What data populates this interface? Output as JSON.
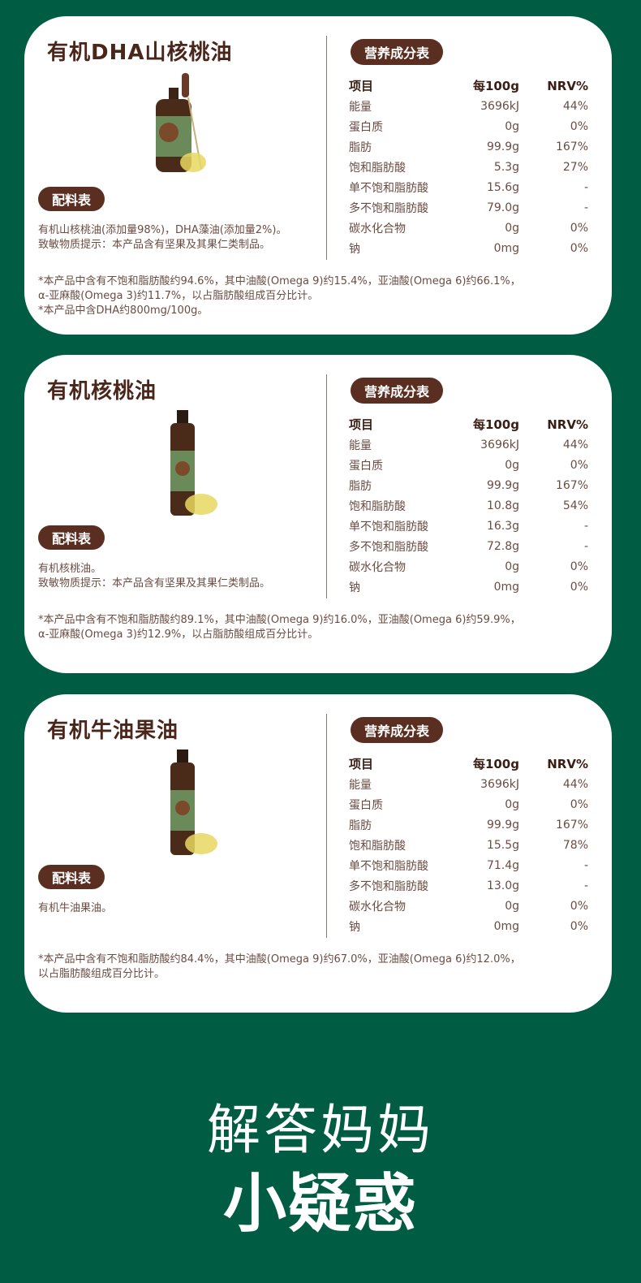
{
  "colors": {
    "background": "#005c43",
    "brown": "#5a2f22"
  },
  "cards": [
    {
      "title": "有机DHA山核桃油",
      "ingredients_label": "配料表",
      "nutrition_label": "营养成分表",
      "ingredients": [
        "有机山核桃油(添加量98%)，DHA藻油(添加量2%)。",
        "致敏物质提示：本产品含有坚果及其果仁类制品。"
      ],
      "header": [
        "项目",
        "每100g",
        "NRV%"
      ],
      "rows": [
        [
          "能量",
          "3696kJ",
          "44%"
        ],
        [
          "蛋白质",
          "0g",
          "0%"
        ],
        [
          "脂肪",
          "99.9g",
          "167%"
        ],
        [
          "饱和脂肪酸",
          "5.3g",
          "27%"
        ],
        [
          "单不饱和脂肪酸",
          "15.6g",
          "-"
        ],
        [
          "多不饱和脂肪酸",
          "79.0g",
          "-"
        ],
        [
          "碳水化合物",
          "0g",
          "0%"
        ],
        [
          "钠",
          "0mg",
          "0%"
        ]
      ],
      "footnotes": [
        "*本产品中含有不饱和脂肪酸约94.6%，其中油酸(Omega 9)约15.4%，亚油酸(Omega 6)约66.1%，",
        "α-亚麻酸(Omega 3)约11.7%，以占脂肪酸组成百分比计。",
        "*本产品中含DHA约800mg/100g。"
      ],
      "bottle": "dropper"
    },
    {
      "title": "有机核桃油",
      "ingredients_label": "配料表",
      "nutrition_label": "营养成分表",
      "ingredients": [
        "有机核桃油。",
        "致敏物质提示：本产品含有坚果及其果仁类制品。"
      ],
      "header": [
        "项目",
        "每100g",
        "NRV%"
      ],
      "rows": [
        [
          "能量",
          "3696kJ",
          "44%"
        ],
        [
          "蛋白质",
          "0g",
          "0%"
        ],
        [
          "脂肪",
          "99.9g",
          "167%"
        ],
        [
          "饱和脂肪酸",
          "10.8g",
          "54%"
        ],
        [
          "单不饱和脂肪酸",
          "16.3g",
          "-"
        ],
        [
          "多不饱和脂肪酸",
          "72.8g",
          "-"
        ],
        [
          "碳水化合物",
          "0g",
          "0%"
        ],
        [
          "钠",
          "0mg",
          "0%"
        ]
      ],
      "footnotes": [
        "*本产品中含有不饱和脂肪酸约89.1%，其中油酸(Omega 9)约16.0%，亚油酸(Omega 6)约59.9%，",
        "α-亚麻酸(Omega 3)约12.9%，以占脂肪酸组成百分比计。"
      ],
      "bottle": "slim"
    },
    {
      "title": "有机牛油果油",
      "ingredients_label": "配料表",
      "nutrition_label": "营养成分表",
      "ingredients": [
        "有机牛油果油。"
      ],
      "header": [
        "项目",
        "每100g",
        "NRV%"
      ],
      "rows": [
        [
          "能量",
          "3696kJ",
          "44%"
        ],
        [
          "蛋白质",
          "0g",
          "0%"
        ],
        [
          "脂肪",
          "99.9g",
          "167%"
        ],
        [
          "饱和脂肪酸",
          "15.5g",
          "78%"
        ],
        [
          "单不饱和脂肪酸",
          "71.4g",
          "-"
        ],
        [
          "多不饱和脂肪酸",
          "13.0g",
          "-"
        ],
        [
          "碳水化合物",
          "0g",
          "0%"
        ],
        [
          "钠",
          "0mg",
          "0%"
        ]
      ],
      "footnotes": [
        "*本产品中含有不饱和脂肪酸约84.4%，其中油酸(Omega 9)约67.0%，亚油酸(Omega 6)约12.0%，",
        "以占脂肪酸组成百分比计。"
      ],
      "bottle": "slim"
    }
  ],
  "banner": {
    "line1": "解答妈妈",
    "line2": "小疑惑"
  }
}
